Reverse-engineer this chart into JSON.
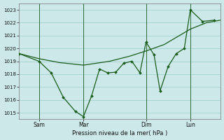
{
  "background_color": "#cce8e8",
  "grid_color": "#99cccc",
  "line_color": "#1a5c1a",
  "xlabel": "Pression niveau de la mer( hPa )",
  "ylim": [
    1014.5,
    1023.5
  ],
  "xlim": [
    0,
    100
  ],
  "yticks": [
    1015,
    1016,
    1017,
    1018,
    1019,
    1020,
    1021,
    1022,
    1023
  ],
  "xtick_labels": [
    "Sam",
    "Mar",
    "Dim",
    "Lun"
  ],
  "xtick_positions": [
    10,
    32,
    63,
    85
  ],
  "vline_positions": [
    10,
    32,
    63,
    85
  ],
  "smooth_x": [
    0,
    10,
    20,
    32,
    45,
    55,
    63,
    72,
    85,
    93,
    100
  ],
  "smooth_y": [
    1019.6,
    1019.2,
    1018.9,
    1018.7,
    1019.0,
    1019.4,
    1019.8,
    1020.3,
    1021.5,
    1022.0,
    1022.2
  ],
  "jagged_x": [
    0,
    10,
    16,
    22,
    28,
    32,
    36,
    40,
    44,
    48,
    52,
    56,
    60,
    63,
    67,
    70,
    74,
    78,
    82,
    85,
    91,
    97
  ],
  "jagged_y": [
    1019.6,
    1019.0,
    1018.1,
    1016.2,
    1015.1,
    1014.7,
    1016.3,
    1018.4,
    1018.1,
    1018.15,
    1018.85,
    1019.0,
    1018.1,
    1020.5,
    1019.5,
    1016.7,
    1018.6,
    1019.6,
    1020.0,
    1023.0,
    1022.1,
    1022.2
  ]
}
